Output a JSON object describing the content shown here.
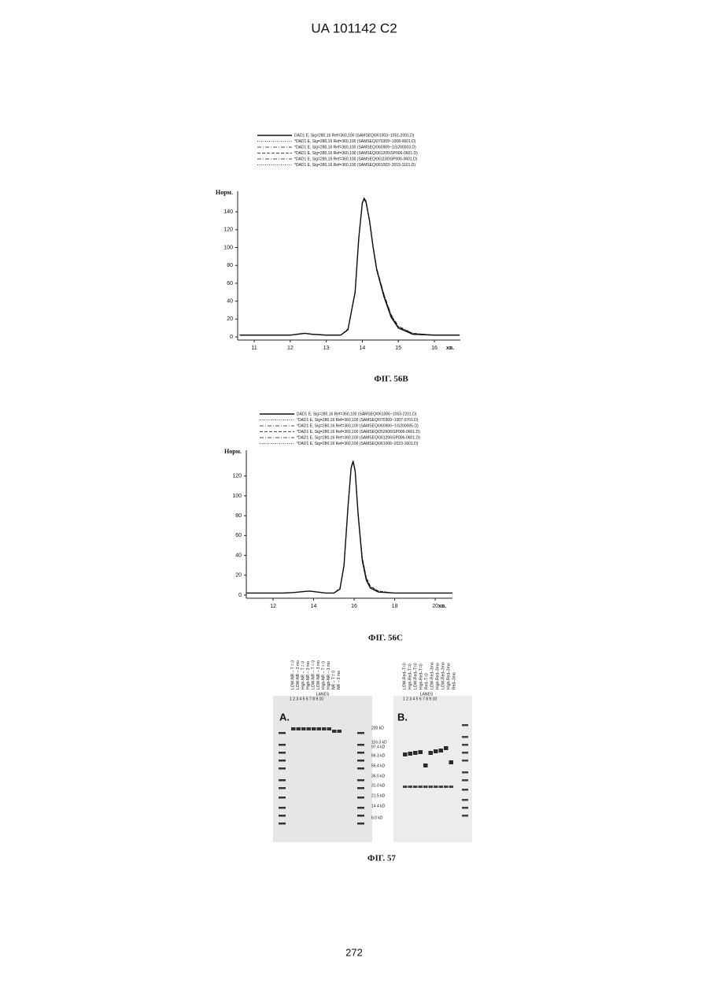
{
  "header": "UA   101142   C2",
  "chart_data": [
    {
      "type": "line",
      "ylabel": "Норм.",
      "xlabel": "хв.",
      "xlim": [
        10.54,
        16.72
      ],
      "ylim": [
        -3.5,
        163
      ],
      "xticks": [
        11,
        12,
        13,
        14,
        15,
        16
      ],
      "yticks": [
        0,
        20,
        40,
        60,
        80,
        100,
        120,
        140
      ],
      "x": [
        10.6,
        11,
        11.5,
        12,
        12.2,
        12.4,
        12.6,
        13,
        13.4,
        13.6,
        13.8,
        13.9,
        14,
        14.05,
        14.1,
        14.2,
        14.3,
        14.4,
        14.6,
        14.8,
        15,
        15.4,
        16,
        16.7
      ],
      "series": [
        {
          "name": "DAD1 E, Sig=280,16 Ref=360,100 (SAMSEQ\\061003~1051-2001.D)",
          "color": "#111",
          "dash": "solid",
          "values": [
            2,
            2,
            2,
            2,
            3,
            4,
            3,
            2,
            2,
            8,
            50,
            110,
            150,
            155,
            152,
            130,
            100,
            75,
            45,
            22,
            10,
            3,
            2,
            2
          ]
        },
        {
          "name": "*DAD1 E, Sig=280,16 Ref=360,100 (SAMSEQ\\070309~1008-0601.D)",
          "color": "#111",
          "dash": "dotted",
          "values": [
            2,
            2,
            2,
            2,
            3,
            4,
            3,
            2,
            2,
            8,
            49,
            108,
            149,
            154,
            151,
            131,
            102,
            77,
            47,
            24,
            11,
            4,
            2,
            2
          ]
        },
        {
          "name": "*DAD1 E, Sig=280,16 Ref=360,100 (SAMSEQ\\060909~1\\S200003.D)",
          "color": "#111",
          "dash": "dash-dot",
          "values": [
            2,
            2,
            2,
            2,
            3,
            4,
            3,
            2,
            2,
            8,
            50,
            109,
            150,
            154,
            151,
            130,
            101,
            76,
            46,
            23,
            10,
            3,
            2,
            2
          ]
        },
        {
          "name": "*DAD1 E, Sig=280,16 Ref=360,100 (SAMSEQ\\061205\\SP006-0601.D)",
          "color": "#111",
          "dash": "dashed",
          "values": [
            2,
            2,
            2,
            2,
            3,
            4,
            3,
            2,
            2,
            9,
            51,
            110,
            150,
            154,
            150,
            129,
            100,
            76,
            47,
            24,
            11,
            4,
            2,
            2
          ]
        },
        {
          "name": "*DAD1 E, Sig=280,16 Ref=360,100 (SAMSEQ\\061180\\SP006-0601.D)",
          "color": "#111",
          "dash": "dash-dot",
          "values": [
            2,
            2,
            2,
            2,
            3,
            4,
            3,
            2,
            2,
            8,
            50,
            110,
            151,
            155,
            151,
            130,
            101,
            77,
            48,
            25,
            12,
            4,
            2,
            2
          ]
        },
        {
          "name": "*DAD1 E, Sig=280,16 Ref=360,100 (SAMSEQ\\061003~2015-1101.D)",
          "color": "#111",
          "dash": "dotted",
          "values": [
            2,
            2,
            2,
            2,
            3,
            4,
            3,
            2,
            2,
            8,
            50,
            109,
            150,
            155,
            152,
            131,
            101,
            76,
            46,
            23,
            11,
            3,
            2,
            2
          ]
        }
      ]
    },
    {
      "type": "line",
      "ylabel": "Норм.",
      "xlabel": "хв.",
      "xlim": [
        10.68,
        20.85
      ],
      "ylim": [
        -3.2,
        146
      ],
      "xticks": [
        12,
        14,
        16,
        18,
        20
      ],
      "yticks": [
        0,
        20,
        40,
        60,
        80,
        100,
        120
      ],
      "x": [
        10.7,
        11.5,
        12,
        12.5,
        13,
        13.5,
        13.8,
        14.2,
        14.6,
        15,
        15.3,
        15.5,
        15.7,
        15.85,
        15.95,
        16.05,
        16.2,
        16.4,
        16.6,
        16.8,
        17.2,
        18,
        19,
        20,
        20.85
      ],
      "series": [
        {
          "name": "DAD1 E, Sig=280,16 Ref=360,100 (SAMSEQ\\061006~1053-2201.D)",
          "color": "#111",
          "dash": "solid",
          "values": [
            2,
            2,
            2,
            2,
            2.5,
            3.5,
            4,
            3,
            2,
            2,
            6,
            30,
            90,
            128,
            135,
            125,
            80,
            35,
            15,
            7,
            3,
            2,
            2,
            2,
            2
          ]
        },
        {
          "name": "*DAD1 E, Sig=280,16 Ref=360,100 (SAMSEQ\\070309~1007-0701.D)",
          "color": "#111",
          "dash": "dotted",
          "values": [
            2,
            2,
            2,
            2,
            2.5,
            3.5,
            4,
            3,
            2,
            2,
            6,
            29,
            88,
            127,
            134,
            126,
            83,
            38,
            17,
            8,
            4,
            2,
            2,
            2,
            2
          ]
        },
        {
          "name": "*DAD1 E, Sig=280,16 Ref=360,100 (SAMSEQ\\060906~1\\S200005.D)",
          "color": "#111",
          "dash": "dash-dot",
          "values": [
            2,
            2,
            2,
            2,
            2.5,
            3.5,
            4,
            3,
            2,
            2,
            6,
            30,
            89,
            128,
            135,
            125,
            81,
            36,
            16,
            7,
            3,
            2,
            2,
            2,
            2
          ]
        },
        {
          "name": "*DAD1 E, Sig=280,16 Ref=360,100 (SAMSEQ\\052606\\SP006-0601.D)",
          "color": "#111",
          "dash": "dashed",
          "values": [
            2,
            2,
            2,
            2,
            2.5,
            3.5,
            4,
            3,
            2,
            2,
            7,
            31,
            90,
            128,
            134,
            124,
            82,
            38,
            18,
            9,
            4,
            2,
            2,
            2,
            2
          ]
        },
        {
          "name": "*DAD1 E, Sig=280,16 Ref=360,100 (SAMSEQ\\061206\\SP006-0601.D)",
          "color": "#111",
          "dash": "dash-dot",
          "values": [
            2,
            2,
            2,
            2,
            2.5,
            3.5,
            4,
            3,
            2,
            2,
            6,
            30,
            90,
            129,
            135,
            125,
            82,
            37,
            17,
            8,
            3,
            2,
            2,
            2,
            2
          ]
        },
        {
          "name": "*DAD1 E, Sig=280,16 Ref=360,100 (SAMSEQ\\061006~2023-1601.D)",
          "color": "#111",
          "dash": "dotted",
          "values": [
            2,
            2,
            2,
            2,
            2.5,
            3.5,
            4,
            3,
            2,
            2,
            6,
            30,
            89,
            128,
            135,
            125,
            81,
            36,
            16,
            8,
            3,
            2,
            2,
            2,
            2
          ]
        }
      ]
    }
  ],
  "captions": [
    "ФІГ. 56В",
    "ФІГ. 56С",
    "ФІГ. 57"
  ],
  "gel": {
    "panel_a": "A.",
    "panel_b": "B.",
    "lanes_title": "LANES",
    "lane_numbers": "1  2  3  4  5  6  7  8  9  10",
    "lanes_a": [
      "LOW-NR – T = 0",
      "LOW-NR – 3 mo",
      "High-NR – T = 0",
      "High-NR – 3 mo",
      "LOW-NR – T = 0",
      "LOW-NR – 3 mo",
      "High-NR – T = 0",
      "High-NR – 3 mo",
      "NR – T = 0",
      "NR – 3 mo"
    ],
    "lanes_b": [
      "LOW-Red–T=0",
      "High-Red–T=0",
      "LOW-Red–T=0",
      "High-Red–T=0",
      "Red–T=0",
      "LOW-Red–3mo",
      "High-Red–3mo",
      "LOW-Red–3mo",
      "High-Red–3mo",
      "Red–3mo"
    ],
    "markers": [
      "200 kD",
      "116.3 kD",
      "97.4 kD",
      "66.3 kD",
      "55.4 kD",
      "36.5 kD",
      "31.0 kD",
      "21.5 kD",
      "14.4 kD",
      "6.0 kD"
    ]
  },
  "page_number": "272"
}
